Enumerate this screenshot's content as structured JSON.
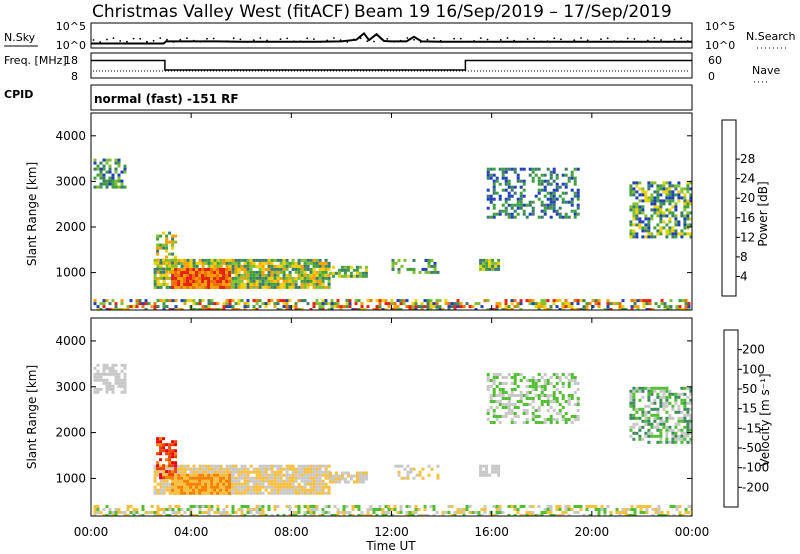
{
  "chart_data": [
    {
      "type": "line",
      "name": "sky-and-search-noise",
      "title": "Christmas Valley West (fitACF)",
      "subtitle": "Beam 19  16/Sep/2019 – 17/Sep/2019",
      "ylabel_left": "N.Sky",
      "ylabel_right": "N.Search",
      "yticks_left": [
        "10^5",
        "10^0"
      ],
      "yticks_right": [
        "10^5",
        "10^0"
      ],
      "x_unit": "hours UT",
      "xlim": [
        0,
        24
      ],
      "series": [
        {
          "name": "N.Sky",
          "x": [
            0,
            1,
            2,
            2.9,
            3,
            4,
            5,
            6,
            7,
            8,
            9,
            10,
            10.6,
            10.9,
            11.1,
            11.4,
            11.7,
            12,
            12.6,
            12.9,
            13.2,
            14,
            15,
            16,
            17,
            18,
            19,
            20,
            21,
            22,
            23,
            24
          ],
          "y_log10": [
            0.6,
            0.6,
            0.6,
            0.6,
            1.1,
            1.1,
            1.1,
            1.0,
            1.0,
            1.0,
            1.0,
            1.1,
            1.5,
            3.0,
            1.4,
            2.8,
            1.2,
            1.1,
            1.1,
            2.2,
            1.1,
            1.0,
            1.0,
            1.0,
            1.0,
            1.0,
            1.0,
            1.0,
            1.0,
            1.0,
            1.0,
            1.0
          ]
        }
      ]
    },
    {
      "type": "line",
      "name": "frequency-and-nave",
      "ylabel_left": "Freq. [MHz]",
      "ylabel_right": "Nave",
      "yticks_left": [
        "18",
        "8"
      ],
      "yticks_right": [
        "60",
        "0"
      ],
      "ylim_left": [
        8,
        18
      ],
      "series": [
        {
          "name": "Freq",
          "x": [
            0,
            2.95,
            2.95,
            14.95,
            14.95,
            24
          ],
          "y": [
            15.5,
            15.5,
            11.2,
            11.2,
            15.5,
            15.5
          ]
        }
      ],
      "cpid_label": "CPID",
      "cpid_text": "normal (fast) -151 RF"
    },
    {
      "type": "heatmap",
      "name": "power",
      "ylabel": "Slant Range [km]",
      "ylim": [
        180,
        4500
      ],
      "yticks": [
        "1000",
        "2000",
        "3000",
        "4000"
      ],
      "colorbar": {
        "label": "Power [dB]",
        "ticks": [
          "4",
          "8",
          "12",
          "16",
          "20",
          "24",
          "28"
        ],
        "colors": [
          "#1010f0",
          "#2040b8",
          "#3c7c6c",
          "#40a040",
          "#80c030",
          "#f0d000",
          "#f8a000",
          "#f07000",
          "#e82010"
        ]
      }
    },
    {
      "type": "heatmap",
      "name": "velocity",
      "ylabel": "Slant Range [km]",
      "ylim": [
        180,
        4500
      ],
      "yticks": [
        "1000",
        "2000",
        "3000",
        "4000"
      ],
      "colorbar": {
        "label": "Velocity [m s⁻¹]",
        "ticks": [
          "-200",
          "-100",
          "-50",
          "-15",
          "15",
          "50",
          "100",
          "200"
        ],
        "colors": [
          "#e80000",
          "#f04000",
          "#f88000",
          "#f8c040",
          "#c8c8c8",
          "#50c030",
          "#3c8c5c",
          "#2050b0",
          "#1010d0"
        ]
      },
      "xlabel": "Time UT",
      "xticks": [
        "00:00",
        "04:00",
        "08:00",
        "12:00",
        "16:00",
        "20:00",
        "00:00"
      ]
    }
  ]
}
